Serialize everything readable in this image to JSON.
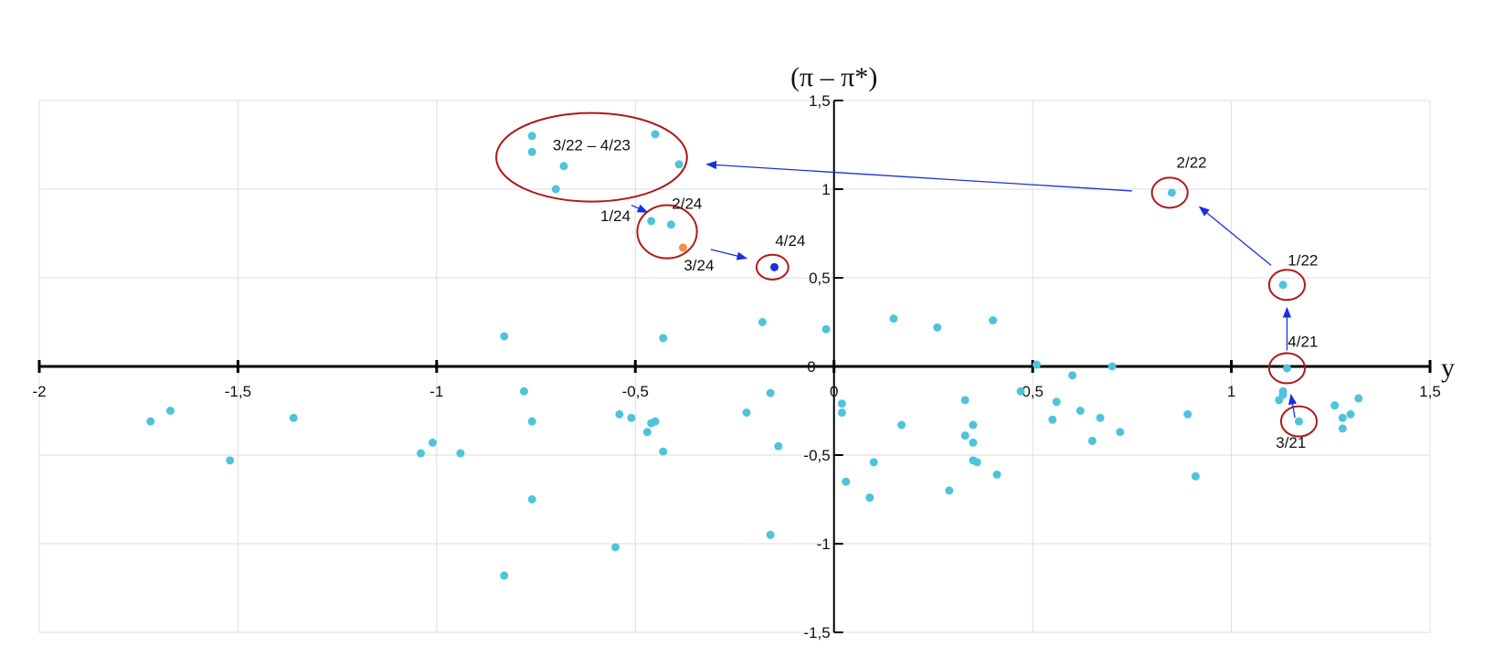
{
  "chart_data": {
    "type": "scatter",
    "title": "",
    "xlabel": "y",
    "ylabel": "(π – π*)",
    "xlim": [
      -2,
      1.5
    ],
    "ylim": [
      -1.5,
      1.5
    ],
    "x_ticks": [
      -2,
      -1.5,
      -1,
      -0.5,
      0,
      0.5,
      1,
      1.5
    ],
    "x_tick_labels": [
      "-2",
      "-1,5",
      "-1",
      "-0,5",
      "0",
      "0,5",
      "1",
      "1,5"
    ],
    "y_ticks": [
      1.5,
      1,
      0.5,
      0,
      -0.5,
      -1,
      -1.5
    ],
    "y_tick_labels": [
      "1,5",
      "1",
      "0,5",
      "0",
      "-0,5",
      "-1",
      "-1,5"
    ],
    "grid": true,
    "colors": {
      "points": "#4fc3dc",
      "highlight_orange": "#f0904a",
      "highlight_blue": "#1a2fe0",
      "circles": "#b01818",
      "arrows": "#1a2fe0",
      "grid": "#dddddd",
      "axes": "#000000"
    },
    "series": [
      {
        "points": [
          [
            -1.72,
            -0.31
          ],
          [
            -1.67,
            -0.25
          ],
          [
            -1.52,
            -0.53
          ],
          [
            -1.36,
            -0.29
          ],
          [
            -1.04,
            -0.49
          ],
          [
            -1.01,
            -0.43
          ],
          [
            -0.94,
            -0.49
          ],
          [
            -0.83,
            0.17
          ],
          [
            -0.83,
            -1.18
          ],
          [
            -0.78,
            -0.14
          ],
          [
            -0.76,
            -0.75
          ],
          [
            -0.76,
            -0.31
          ],
          [
            -0.55,
            -1.02
          ],
          [
            -0.54,
            -0.27
          ],
          [
            -0.51,
            -0.29
          ],
          [
            -0.47,
            -0.37
          ],
          [
            -0.46,
            -0.32
          ],
          [
            -0.45,
            -0.31
          ],
          [
            -0.43,
            0.16
          ],
          [
            -0.43,
            -0.48
          ],
          [
            -0.22,
            -0.26
          ],
          [
            -0.18,
            0.25
          ],
          [
            -0.16,
            -0.15
          ],
          [
            -0.16,
            -0.95
          ],
          [
            -0.14,
            -0.45
          ],
          [
            -0.02,
            0.21
          ],
          [
            0.02,
            -0.26
          ],
          [
            0.02,
            -0.21
          ],
          [
            0.03,
            -0.65
          ],
          [
            0.09,
            -0.74
          ],
          [
            0.1,
            -0.54
          ],
          [
            0.15,
            0.27
          ],
          [
            0.17,
            -0.33
          ],
          [
            0.26,
            0.22
          ],
          [
            0.29,
            -0.7
          ],
          [
            0.33,
            -0.19
          ],
          [
            0.33,
            -0.39
          ],
          [
            0.35,
            -0.33
          ],
          [
            0.35,
            -0.43
          ],
          [
            0.35,
            -0.53
          ],
          [
            0.36,
            -0.54
          ],
          [
            0.4,
            0.26
          ],
          [
            0.41,
            -0.61
          ],
          [
            0.47,
            -0.14
          ],
          [
            0.51,
            0.01
          ],
          [
            0.55,
            -0.3
          ],
          [
            0.56,
            -0.2
          ],
          [
            0.6,
            -0.05
          ],
          [
            0.62,
            -0.25
          ],
          [
            0.65,
            -0.42
          ],
          [
            0.67,
            -0.29
          ],
          [
            0.7,
            0.0
          ],
          [
            0.72,
            -0.37
          ],
          [
            0.89,
            -0.27
          ],
          [
            0.91,
            -0.62
          ],
          [
            1.12,
            -0.19
          ],
          [
            1.13,
            -0.16
          ],
          [
            1.13,
            -0.14
          ],
          [
            1.26,
            -0.22
          ],
          [
            1.28,
            -0.35
          ],
          [
            1.28,
            -0.29
          ],
          [
            1.3,
            -0.27
          ],
          [
            1.32,
            -0.18
          ]
        ]
      },
      {
        "points": [
          [
            -0.76,
            1.3
          ],
          [
            -0.76,
            1.21
          ],
          [
            -0.68,
            1.13
          ],
          [
            -0.7,
            1.0
          ],
          [
            -0.45,
            1.31
          ],
          [
            -0.39,
            1.14
          ],
          [
            -0.46,
            0.82
          ],
          [
            -0.41,
            0.8
          ],
          [
            0.85,
            0.98
          ],
          [
            1.13,
            0.46
          ],
          [
            1.14,
            -0.01
          ],
          [
            1.17,
            -0.31
          ]
        ]
      },
      {
        "points": [
          [
            -0.38,
            0.67
          ]
        ]
      },
      {
        "points": [
          [
            -0.15,
            0.56
          ]
        ]
      }
    ],
    "annotations": [
      {
        "text": "3/22 – 4/23",
        "x": -0.61,
        "y": 1.22
      },
      {
        "text": "2/22",
        "x": 0.9,
        "y": 1.12
      },
      {
        "text": "1/24",
        "x": -0.55,
        "y": 0.82
      },
      {
        "text": "2/24",
        "x": -0.37,
        "y": 0.89
      },
      {
        "text": "3/24",
        "x": -0.34,
        "y": 0.54
      },
      {
        "text": "4/24",
        "x": -0.11,
        "y": 0.68
      },
      {
        "text": "1/22",
        "x": 1.18,
        "y": 0.57
      },
      {
        "text": "4/21",
        "x": 1.18,
        "y": 0.11
      },
      {
        "text": "3/21",
        "x": 1.15,
        "y": -0.46
      }
    ],
    "circled_regions": [
      {
        "cx": -0.61,
        "cy": 1.18,
        "rx": 0.24,
        "ry": 0.25
      },
      {
        "cx": -0.42,
        "cy": 0.76,
        "rx": 0.075,
        "ry": 0.15
      },
      {
        "cx": -0.155,
        "cy": 0.56,
        "rx": 0.04,
        "ry": 0.07
      },
      {
        "cx": 0.845,
        "cy": 0.98,
        "rx": 0.045,
        "ry": 0.085
      },
      {
        "cx": 1.14,
        "cy": 0.46,
        "rx": 0.045,
        "ry": 0.085
      },
      {
        "cx": 1.14,
        "cy": -0.01,
        "rx": 0.045,
        "ry": 0.085
      },
      {
        "cx": 1.17,
        "cy": -0.31,
        "rx": 0.045,
        "ry": 0.085
      }
    ],
    "arrows": [
      {
        "from": [
          1.16,
          -0.29
        ],
        "to": [
          1.15,
          -0.16
        ]
      },
      {
        "from": [
          1.14,
          0.09
        ],
        "to": [
          1.14,
          0.33
        ]
      },
      {
        "from": [
          1.1,
          0.57
        ],
        "to": [
          0.92,
          0.9
        ]
      },
      {
        "from": [
          0.75,
          0.99
        ],
        "to": [
          -0.32,
          1.14
        ]
      },
      {
        "from": [
          -0.51,
          0.91
        ],
        "to": [
          -0.47,
          0.87
        ]
      },
      {
        "from": [
          -0.31,
          0.66
        ],
        "to": [
          -0.22,
          0.61
        ]
      }
    ]
  }
}
